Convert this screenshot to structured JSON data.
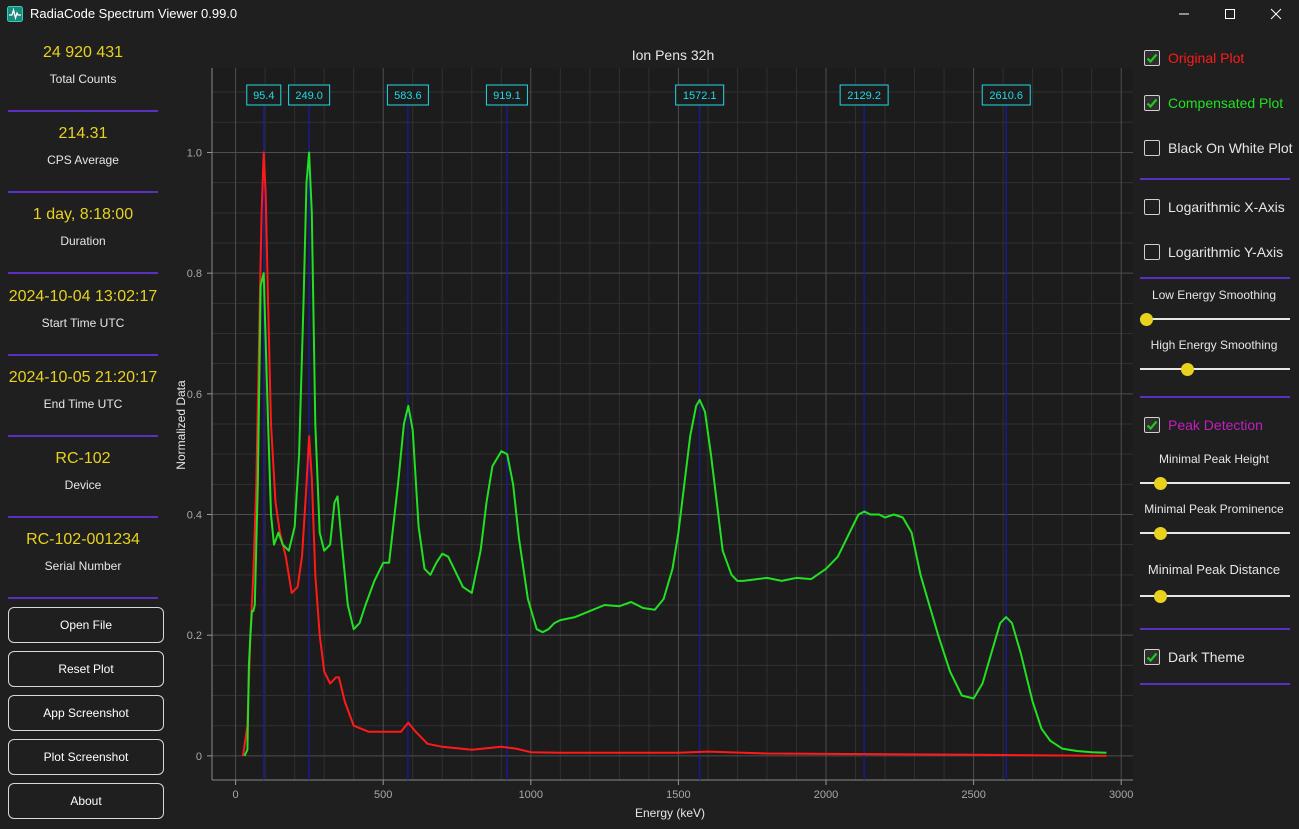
{
  "window": {
    "title": "RadiaCode Spectrum Viewer 0.99.0",
    "icon": "pulse-icon"
  },
  "stats": [
    {
      "value": "24 920 431",
      "label": "Total Counts"
    },
    {
      "value": "214.31",
      "label": "CPS Average"
    },
    {
      "value": "1 day, 8:18:00",
      "label": "Duration"
    },
    {
      "value": "2024-10-04 13:02:17",
      "label": "Start Time UTC"
    },
    {
      "value": "2024-10-05 21:20:17",
      "label": "End Time UTC"
    },
    {
      "value": "RC-102",
      "label": "Device"
    },
    {
      "value": "RC-102-001234",
      "label": "Serial Number"
    }
  ],
  "buttons": {
    "open_file": "Open File",
    "reset_plot": "Reset Plot",
    "app_screenshot": "App Screenshot",
    "plot_screenshot": "Plot Screenshot",
    "about": "About"
  },
  "options": {
    "original_plot": {
      "label": "Original Plot",
      "checked": true,
      "color": "#ff1a1a"
    },
    "compensated_plot": {
      "label": "Compensated Plot",
      "checked": true,
      "color": "#22e022"
    },
    "black_on_white": {
      "label": "Black On White Plot",
      "checked": false
    },
    "log_x": {
      "label": "Logarithmic X-Axis",
      "checked": false
    },
    "log_y": {
      "label": "Logarithmic Y-Axis",
      "checked": false
    },
    "peak_detection": {
      "label": "Peak Detection",
      "checked": true,
      "color": "#c21fc2"
    },
    "dark_theme": {
      "label": "Dark Theme",
      "checked": true
    }
  },
  "sliders": {
    "low_energy_smoothing": {
      "label": "Low Energy Smoothing",
      "value": 0.0
    },
    "high_energy_smoothing": {
      "label": "High Energy Smoothing",
      "value": 0.3
    },
    "min_peak_height": {
      "label": "Minimal Peak Height",
      "value": 0.1
    },
    "min_peak_prominence": {
      "label": "Minimal Peak Prominence",
      "value": 0.1
    },
    "min_peak_distance": {
      "label": "Minimal Peak Distance",
      "value": 0.1
    }
  },
  "colors": {
    "accent_divider": "#5a2fc2",
    "stat_value": "#e8d21e",
    "check": "#22c822",
    "peak_label": "#22d8e8",
    "peak_line": "#1a1aa8"
  },
  "chart_data": {
    "type": "line",
    "title": "Ion Pens 32h",
    "xlabel": "Energy (keV)",
    "ylabel": "Normalized Data",
    "xlim": [
      -80,
      3040
    ],
    "ylim": [
      -0.04,
      1.14
    ],
    "xticks": [
      0,
      500,
      1000,
      1500,
      2000,
      2500,
      3000
    ],
    "yticks": [
      0,
      0.2,
      0.4,
      0.6,
      0.8,
      1.0
    ],
    "ytick_labels": [
      "0",
      "0.2",
      "0.4",
      "0.6",
      "0.8",
      "1.0"
    ],
    "grid": true,
    "peaks": [
      95.4,
      249.0,
      583.6,
      919.1,
      1572.1,
      2129.2,
      2610.6
    ],
    "peak_labels": [
      "95.4",
      "249.0",
      "583.6",
      "919.1",
      "1572.1",
      "2129.2",
      "2610.6"
    ],
    "series": [
      {
        "color": "#ff1a1a",
        "x": [
          25,
          40,
          50,
          60,
          70,
          80,
          88,
          95,
          102,
          110,
          120,
          135,
          150,
          170,
          190,
          210,
          225,
          240,
          249,
          258,
          270,
          285,
          300,
          320,
          340,
          350,
          370,
          400,
          450,
          520,
          560,
          585,
          610,
          650,
          700,
          800,
          900,
          950,
          1000,
          1100,
          1500,
          1600,
          1800,
          2500,
          2950
        ],
        "y": [
          0.0,
          0.05,
          0.2,
          0.3,
          0.45,
          0.7,
          0.9,
          1.0,
          0.93,
          0.75,
          0.55,
          0.42,
          0.37,
          0.33,
          0.27,
          0.28,
          0.33,
          0.45,
          0.53,
          0.46,
          0.3,
          0.2,
          0.14,
          0.12,
          0.13,
          0.13,
          0.09,
          0.05,
          0.04,
          0.04,
          0.04,
          0.055,
          0.04,
          0.02,
          0.015,
          0.01,
          0.015,
          0.012,
          0.006,
          0.005,
          0.005,
          0.007,
          0.004,
          0.002,
          0.0
        ]
      },
      {
        "color": "#22e022",
        "x": [
          30,
          40,
          45,
          50,
          55,
          60,
          65,
          75,
          85,
          95,
          100,
          110,
          120,
          130,
          145,
          160,
          180,
          200,
          215,
          230,
          240,
          249,
          258,
          270,
          285,
          300,
          320,
          335,
          345,
          360,
          380,
          400,
          420,
          440,
          470,
          500,
          520,
          550,
          570,
          585,
          600,
          620,
          640,
          660,
          680,
          700,
          720,
          740,
          770,
          800,
          830,
          850,
          870,
          900,
          920,
          940,
          960,
          990,
          1020,
          1040,
          1060,
          1080,
          1100,
          1150,
          1200,
          1250,
          1300,
          1340,
          1380,
          1420,
          1450,
          1480,
          1500,
          1520,
          1540,
          1560,
          1572,
          1590,
          1610,
          1630,
          1650,
          1680,
          1700,
          1720,
          1800,
          1850,
          1900,
          1950,
          2000,
          2040,
          2080,
          2110,
          2130,
          2150,
          2180,
          2200,
          2230,
          2260,
          2290,
          2320,
          2350,
          2380,
          2420,
          2460,
          2500,
          2530,
          2560,
          2590,
          2610,
          2630,
          2660,
          2700,
          2730,
          2760,
          2800,
          2850,
          2900,
          2950
        ],
        "y": [
          0.0,
          0.01,
          0.15,
          0.2,
          0.24,
          0.24,
          0.25,
          0.45,
          0.78,
          0.8,
          0.72,
          0.55,
          0.4,
          0.35,
          0.37,
          0.35,
          0.34,
          0.38,
          0.5,
          0.75,
          0.95,
          1.0,
          0.9,
          0.55,
          0.37,
          0.34,
          0.35,
          0.42,
          0.43,
          0.35,
          0.25,
          0.21,
          0.22,
          0.25,
          0.29,
          0.32,
          0.32,
          0.45,
          0.55,
          0.58,
          0.54,
          0.38,
          0.31,
          0.3,
          0.32,
          0.335,
          0.33,
          0.31,
          0.28,
          0.27,
          0.34,
          0.42,
          0.48,
          0.505,
          0.5,
          0.45,
          0.36,
          0.26,
          0.21,
          0.205,
          0.21,
          0.22,
          0.225,
          0.23,
          0.24,
          0.25,
          0.248,
          0.255,
          0.245,
          0.242,
          0.26,
          0.31,
          0.37,
          0.45,
          0.53,
          0.58,
          0.59,
          0.57,
          0.5,
          0.42,
          0.34,
          0.3,
          0.29,
          0.29,
          0.295,
          0.29,
          0.295,
          0.293,
          0.31,
          0.33,
          0.37,
          0.4,
          0.405,
          0.4,
          0.4,
          0.395,
          0.4,
          0.395,
          0.37,
          0.3,
          0.25,
          0.2,
          0.14,
          0.1,
          0.095,
          0.12,
          0.17,
          0.22,
          0.23,
          0.22,
          0.17,
          0.09,
          0.045,
          0.025,
          0.012,
          0.008,
          0.006,
          0.005
        ]
      }
    ]
  }
}
